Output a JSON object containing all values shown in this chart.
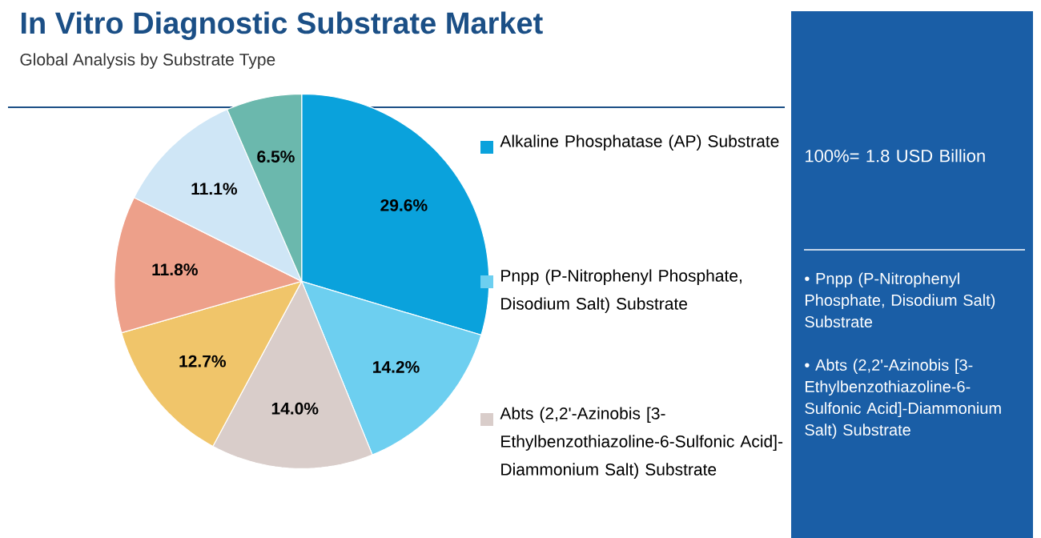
{
  "chart_data": {
    "type": "pie",
    "title": "In Vitro Diagnostic Substrate Market",
    "subtitle": "Global Analysis by Substrate Type",
    "categories": [
      "Alkaline Phosphatase (AP) Substrate",
      "Pnpp (P-Nitrophenyl Phosphate, Disodium Salt) Substrate",
      "Abts (2,2'-Azinobis [3-Ethylbenzothiazoline-6-Sulfonic Acid]-Diammonium Salt) Substrate",
      null,
      null,
      null,
      null
    ],
    "values": [
      29.6,
      14.2,
      14.0,
      12.7,
      11.8,
      11.1,
      6.5
    ],
    "value_labels": [
      "29.6%",
      "14.2%",
      "14.0%",
      "12.7%",
      "11.8%",
      "11.1%",
      "6.5%"
    ],
    "colors": [
      "#0aa2dc",
      "#6dcff0",
      "#d9cdca",
      "#f0c56a",
      "#eda08a",
      "#cfe6f6",
      "#6bb8ad"
    ],
    "legend": "right",
    "annotations": [
      "100%= 1.8 USD Billion",
      "• Pnpp (P-Nitrophenyl Phosphate, Disodium Salt) Substrate",
      "• Abts (2,2'-Azinobis [3-Ethylbenzothiazoline-6-Sulfonic Acid]-Diammonium Salt) Substrate"
    ]
  }
}
